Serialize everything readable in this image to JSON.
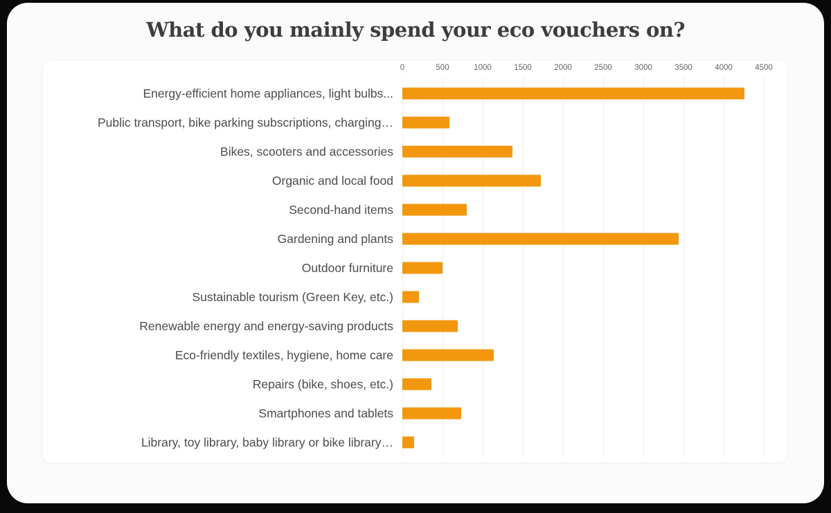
{
  "page": {
    "background_color": "#0a0a0a",
    "card_background": "#fcfbfb",
    "panel_background": "#ffffff"
  },
  "chart_data": {
    "type": "bar",
    "orientation": "horizontal",
    "title": "What do you mainly spend your eco vouchers on?",
    "title_color": "#3d3d3d",
    "bar_color": "#f2970e",
    "grid_color": "#ececec",
    "label_color": "#4c4c4c",
    "tick_color": "#666666",
    "axis_position": "top",
    "grid": true,
    "legend": false,
    "xlabel": "",
    "ylabel": "",
    "xlim": [
      0,
      4500
    ],
    "x_ticks": [
      "0",
      "500",
      "1000",
      "1500",
      "2000",
      "2500",
      "3000",
      "3500",
      "4000",
      "4500"
    ],
    "categories": [
      "Energy-efficient home appliances, light bulbs...",
      "Public transport, bike parking subscriptions, charging…",
      "Bikes, scooters and accessories",
      "Organic and local food",
      "Second-hand items",
      "Gardening and plants",
      "Outdoor furniture",
      "Sustainable tourism (Green Key, etc.)",
      "Renewable energy and energy-saving products",
      "Eco-friendly textiles, hygiene, home care",
      "Repairs (bike, shoes, etc.)",
      "Smartphones and tablets",
      "Library, toy library, baby library or bike library…"
    ],
    "values": [
      4260,
      590,
      1370,
      1720,
      800,
      3440,
      500,
      210,
      690,
      1140,
      360,
      730,
      145
    ]
  }
}
